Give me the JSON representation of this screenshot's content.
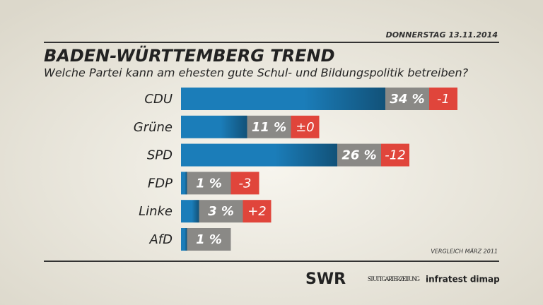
{
  "chart_data": {
    "type": "bar",
    "date": "DONNERSTAG 13.11.2014",
    "title": "BADEN-WÜRTTEMBERG TREND",
    "subtitle": "Welche Partei kann am ehesten gute Schul- und Bildungspolitik betreiben?",
    "categories": [
      "CDU",
      "Grüne",
      "SPD",
      "FDP",
      "Linke",
      "AfD"
    ],
    "values": [
      34,
      11,
      26,
      1,
      3,
      1
    ],
    "value_labels": [
      "34 %",
      "11 %",
      "26 %",
      "1 %",
      "3 %",
      "1 %"
    ],
    "changes": [
      -1,
      0,
      -12,
      -3,
      2,
      null
    ],
    "change_labels": [
      "-1",
      "±0",
      "-12",
      "-3",
      "+2",
      null
    ],
    "color": "#1b7db9",
    "label_color": "#8a8986",
    "change_color": "#e0453b",
    "note": "VERGLEICH MÄRZ 2011",
    "logos": [
      "SWR",
      "STUTTGARTER ZEITUNG",
      "infratest dimap"
    ]
  }
}
